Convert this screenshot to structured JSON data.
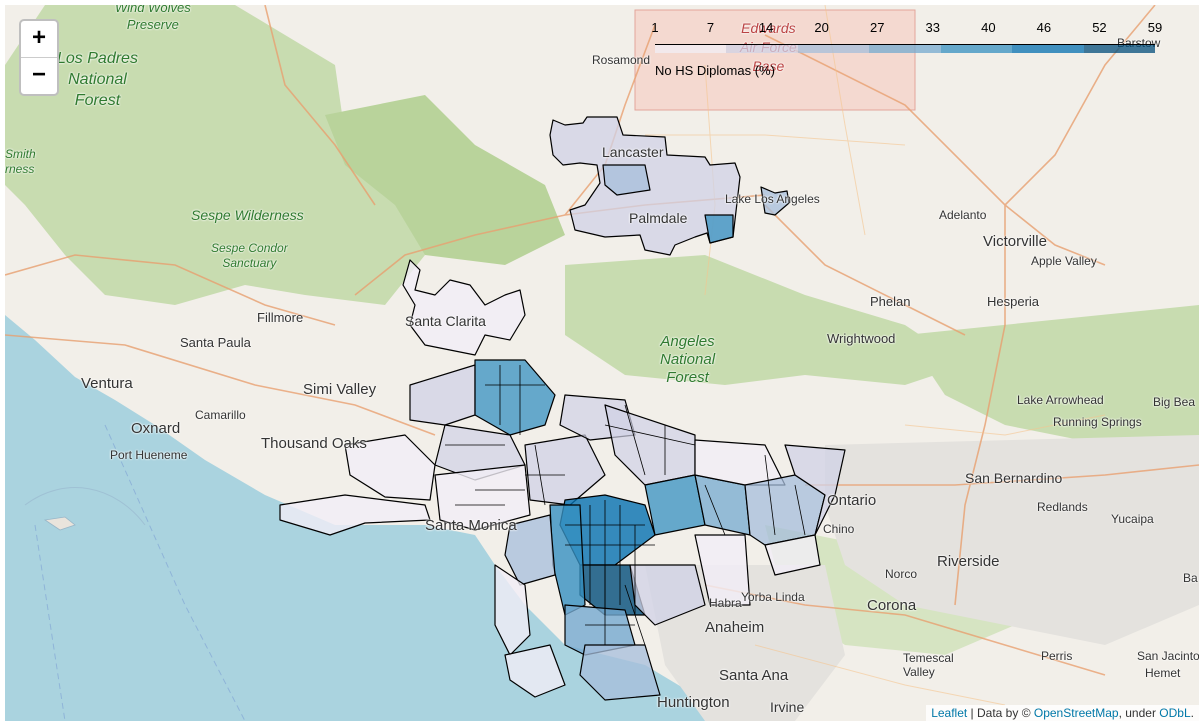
{
  "map": {
    "zoom_in": "+",
    "zoom_out": "−",
    "places": {
      "wind_wolves": "Wind Wolves\nPreserve",
      "los_padres": "Los Padres\nNational\nForest",
      "smith": "Smith\nrness",
      "sespe_wilderness": "Sespe Wilderness",
      "sespe_condor": "Sespe Condor\nSanctuary",
      "santa_paula": "Santa Paula",
      "fillmore": "Fillmore",
      "ventura": "Ventura",
      "oxnard": "Oxnard",
      "camarillo": "Camarillo",
      "port_hueneme": "Port Hueneme",
      "simi_valley": "Simi Valley",
      "thousand_oaks": "Thousand Oaks",
      "santa_clarita": "Santa Clarita",
      "santa_monica": "Santa Monica",
      "angeles_nf": "Angeles\nNational\nForest",
      "wrightwood": "Wrightwood",
      "phelan": "Phelan",
      "hesperia": "Hesperia",
      "victorville": "Victorville",
      "apple_valley": "Apple Valley",
      "adelanto": "Adelanto",
      "lancaster": "Lancaster",
      "palmdale": "Palmdale",
      "lake_los_angeles": "Lake Los Angeles",
      "rosamond": "Rosamond",
      "edwards": "Edwards\nAir Force\nBase",
      "barstow": "Barstow",
      "lake_arrowhead": "Lake Arrowhead",
      "big_bear": "Big Bea",
      "running_springs": "Running Springs",
      "san_bernardino": "San Bernardino",
      "redlands": "Redlands",
      "yucaipa": "Yucaipa",
      "ontario": "Ontario",
      "chino": "Chino",
      "norco": "Norco",
      "riverside": "Riverside",
      "corona": "Corona",
      "yorba_linda": "Yorba Linda",
      "habra": "Habra",
      "anaheim": "Anaheim",
      "santa_ana": "Santa Ana",
      "huntington": "Huntington",
      "irvine": "Irvine",
      "temescal": "Temescal\nValley",
      "perris": "Perris",
      "san_jacinto": "San Jacinto",
      "hemet": "Hemet",
      "ba": "Ba"
    }
  },
  "legend": {
    "ticks": [
      "1",
      "7",
      "14",
      "20",
      "27",
      "33",
      "40",
      "46",
      "52",
      "59"
    ],
    "caption": "No HS Diplomas (%)",
    "colors": [
      "#f1eef6",
      "#d0d1e6",
      "#a6bddb",
      "#74a9cf",
      "#3690c0",
      "#0570b0",
      "#034e7b"
    ]
  },
  "attribution": {
    "leaflet": "Leaflet",
    "sep": " | Data by © ",
    "osm": "OpenStreetMap",
    "under": ", under ",
    "odbl": "ODbL",
    "end": "."
  }
}
